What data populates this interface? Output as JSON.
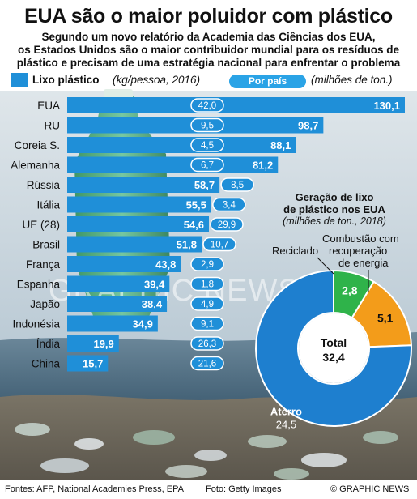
{
  "header": {
    "title": "EUA são o maior poluidor com plástico",
    "subtitle_lines": [
      "Segundo um novo relatório da Academia das Ciências dos EUA,",
      "os Estados Unidos são o maior contribuidor mundial para os resíduos de",
      "plástico e precisam de uma estratégia nacional para enfrentar o problema"
    ]
  },
  "legend": {
    "bar_label": "Lixo plástico",
    "bar_unit": "(kg/pessoa, 2016)",
    "pill_label": "Por país",
    "pill_unit": "(milhões de ton.)"
  },
  "colors": {
    "bar": "#1f8fd8",
    "pill_fill": "#1f8fd8",
    "pill_border": "#ffffff",
    "donut_landfill": "#1e7fcf",
    "donut_recycled": "#2fb34a",
    "donut_combustion": "#f39c1a",
    "sky_top": "#c9d7e2",
    "sea": "#4f6f86",
    "beach": "#8c8577"
  },
  "chart_data": [
    {
      "type": "bar",
      "orientation": "horizontal",
      "categories": [
        "EUA",
        "RU",
        "Coreia S.",
        "Alemanha",
        "Rússia",
        "Itália",
        "UE (28)",
        "Brasil",
        "França",
        "Espanha",
        "Japão",
        "Indonésia",
        "Índia",
        "China"
      ],
      "series": [
        {
          "name": "Lixo plástico",
          "values": [
            130.1,
            98.7,
            88.1,
            81.2,
            58.7,
            55.5,
            54.6,
            51.8,
            43.8,
            39.4,
            38.4,
            34.9,
            19.9,
            15.7
          ]
        },
        {
          "name": "Por país",
          "values": [
            42.0,
            9.5,
            4.5,
            6.7,
            8.5,
            3.4,
            29.9,
            10.7,
            2.9,
            1.8,
            4.9,
            9.1,
            26.3,
            21.6
          ]
        }
      ],
      "value_labels": [
        "130,1",
        "98,7",
        "88,1",
        "81,2",
        "58,7",
        "55,5",
        "54,6",
        "51,8",
        "43,8",
        "39,4",
        "38,4",
        "34,9",
        "19,9",
        "15,7"
      ],
      "pill_labels": [
        "42,0",
        "9,5",
        "4,5",
        "6,7",
        "8,5",
        "3,4",
        "29,9",
        "10,7",
        "2,9",
        "1,8",
        "4,9",
        "9,1",
        "26,3",
        "21,6"
      ],
      "xlim": [
        0,
        130.1
      ]
    },
    {
      "type": "pie",
      "variant": "donut",
      "title_lines": [
        "Geração de lixo",
        "de plástico nos EUA"
      ],
      "unit": "(milhões de ton., 2018)",
      "center_label": "Total",
      "center_value": "32,4",
      "total": 32.4,
      "slices": [
        {
          "name": "Aterro",
          "value": 24.5,
          "label": "24,5",
          "color": "#1e7fcf"
        },
        {
          "name": "Reciclado",
          "value": 2.8,
          "label": "2,8",
          "color": "#2fb34a"
        },
        {
          "name": "Combustão com recuperação de energia",
          "value": 5.1,
          "label": "5,1",
          "color": "#f39c1a"
        }
      ],
      "outside_labels": {
        "recycled": "Reciclado",
        "combustion_lines": [
          "Combustão com",
          "recuperação",
          "de energia"
        ]
      }
    }
  ],
  "watermark": "GRAPHIC NEWS",
  "footer": {
    "sources": "Fontes: AFP, National Academies Press, EPA",
    "photo": "Foto: Getty Images",
    "credit": "© GRAPHIC NEWS"
  }
}
